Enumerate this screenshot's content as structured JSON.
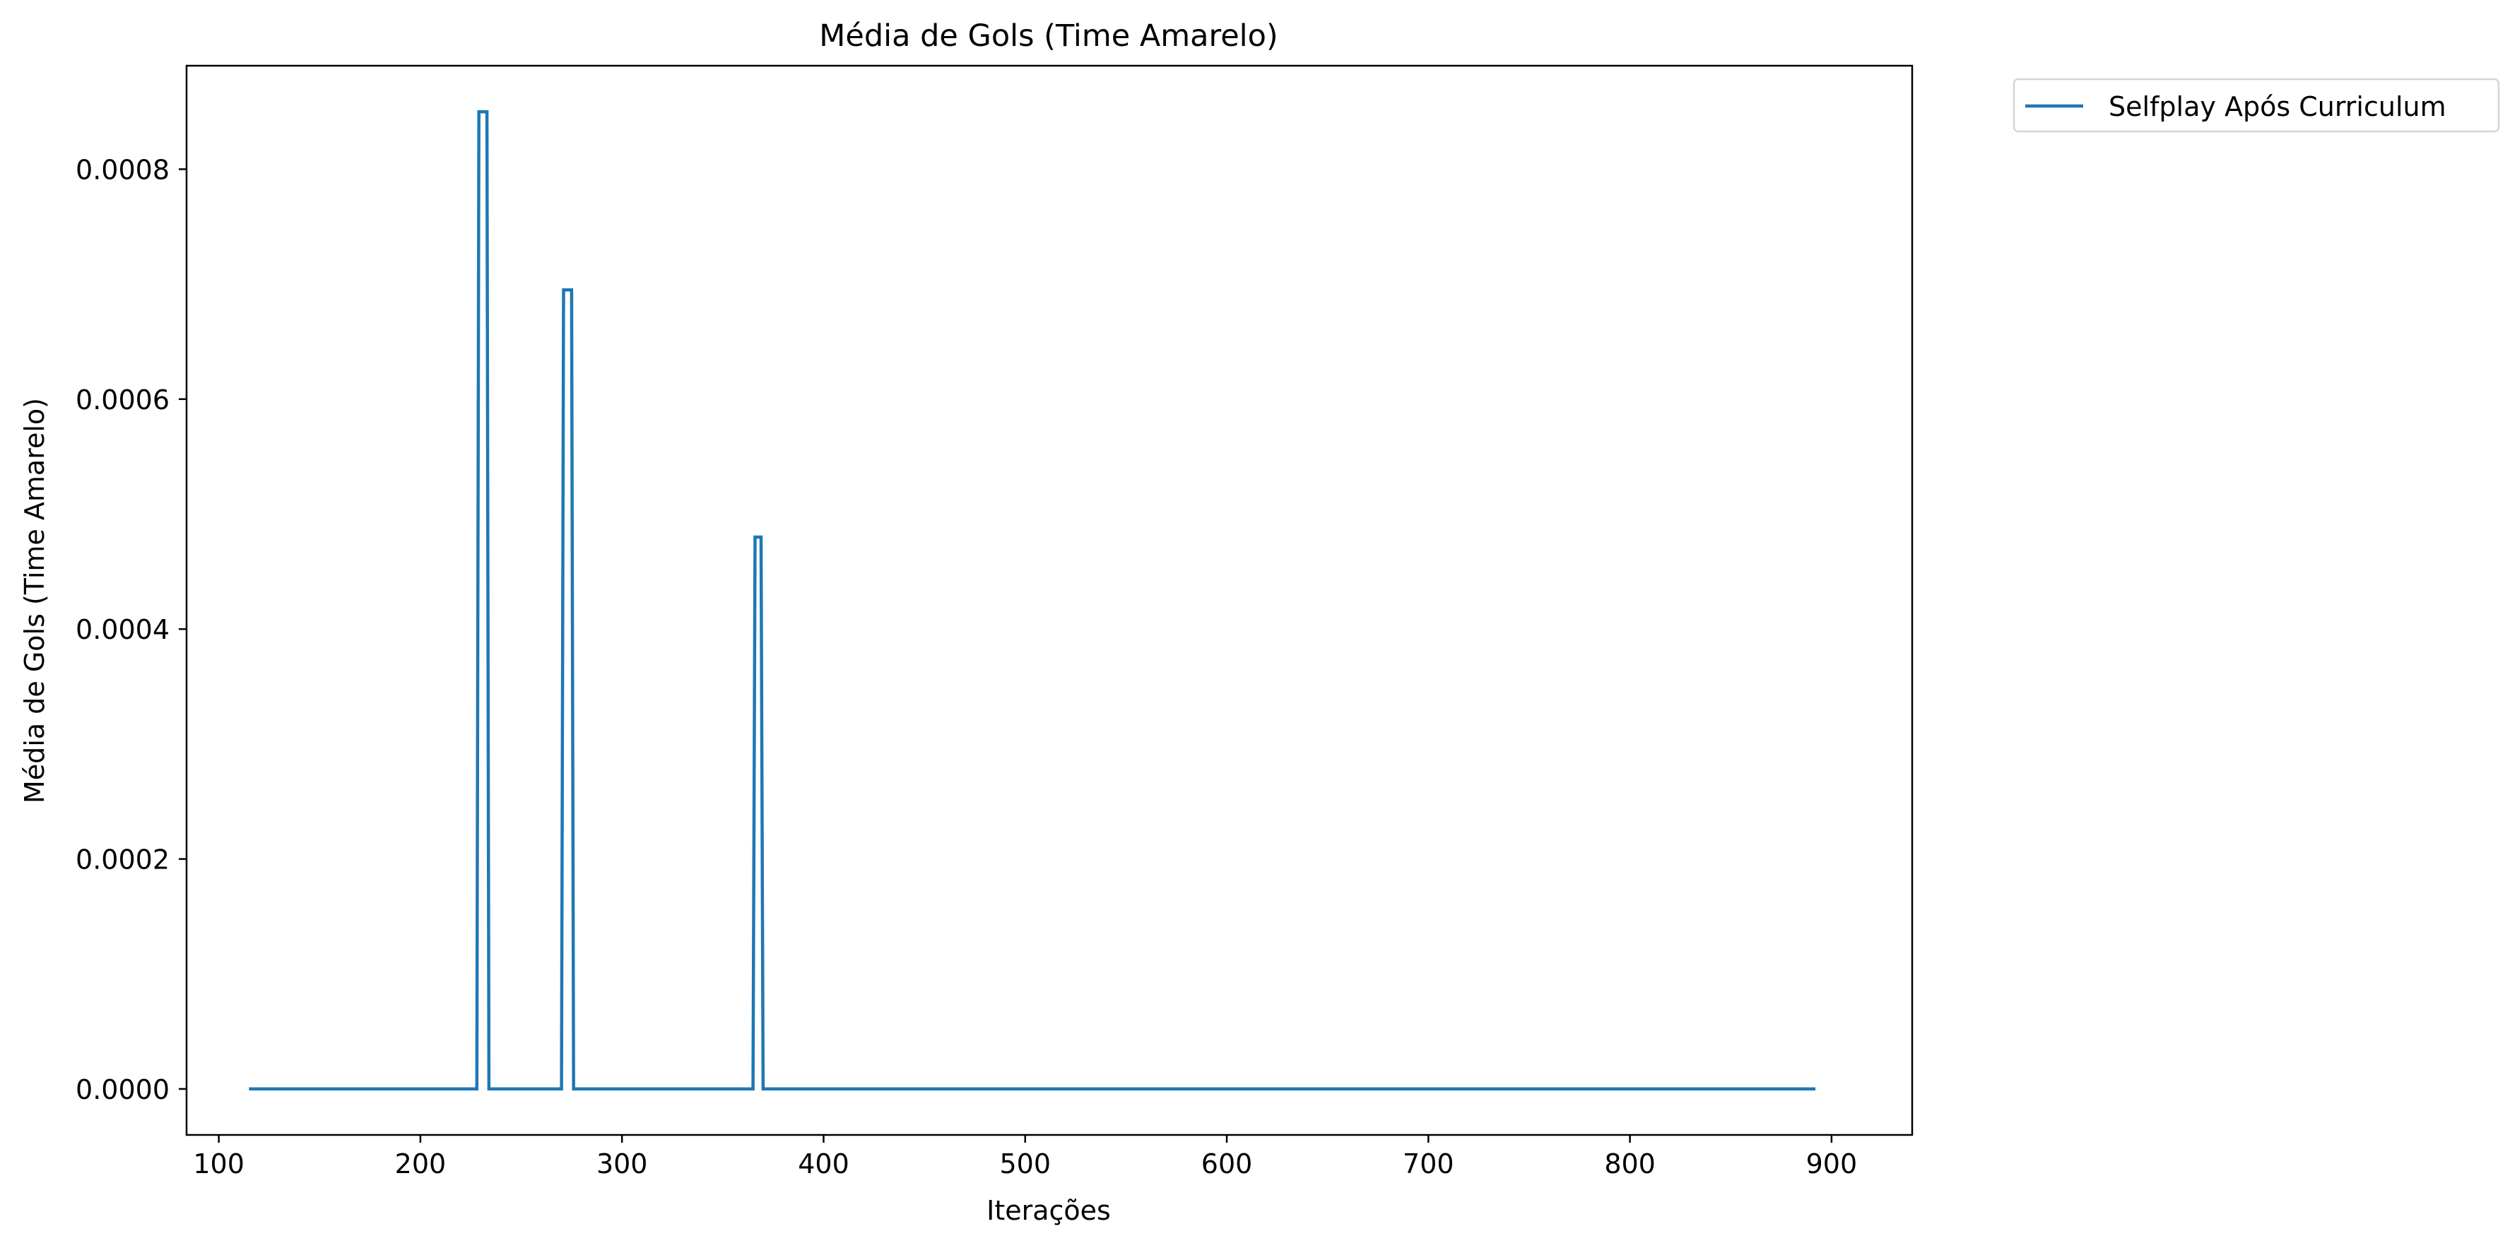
{
  "chart_data": {
    "type": "line",
    "title": "Média de Gols (Time Amarelo)",
    "xlabel": "Iterações",
    "ylabel": "Média de Gols (Time Amarelo)",
    "xlim": [
      84,
      940
    ],
    "ylim": [
      -4e-05,
      0.00089
    ],
    "xticks": [
      100,
      200,
      300,
      400,
      500,
      600,
      700,
      800,
      900
    ],
    "xtick_labels": [
      "100",
      "200",
      "300",
      "400",
      "500",
      "600",
      "700",
      "800",
      "900"
    ],
    "yticks": [
      0,
      0.0002,
      0.0004,
      0.0006,
      0.0008
    ],
    "ytick_labels": [
      "0.0000",
      "0.0002",
      "0.0004",
      "0.0006",
      "0.0008"
    ],
    "grid": false,
    "legend_position": "outside-top-right",
    "series": [
      {
        "name": "Selfplay Após Curriculum",
        "color": "#1f77b4",
        "x": [
          115,
          228,
          229,
          233,
          234,
          270,
          271,
          275,
          276,
          365,
          366,
          369,
          370,
          892
        ],
        "y": [
          0,
          0,
          0.00085,
          0.00085,
          0,
          0,
          0.000695,
          0.000695,
          0,
          0,
          0.00048,
          0.00048,
          0,
          0
        ]
      }
    ]
  }
}
